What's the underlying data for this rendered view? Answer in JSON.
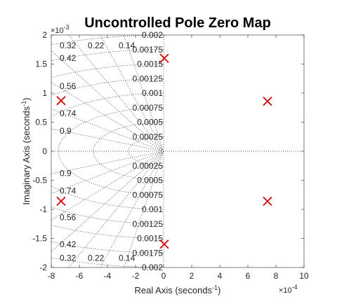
{
  "chart_data": {
    "type": "scatter",
    "title": "Uncontrolled Pole Zero Map",
    "xlabel": "Real Axis (seconds",
    "xlabel_sup": "-1",
    "ylabel": "Imaginary Axis (seconds",
    "ylabel_sup": "-1",
    "x_exponent_base": "×10",
    "x_exponent": "-4",
    "y_exponent_base": "×10",
    "y_exponent": "-3",
    "xlim": [
      -8,
      10
    ],
    "ylim": [
      -2,
      2
    ],
    "x_ticks": [
      -8,
      -6,
      -4,
      -2,
      0,
      2,
      4,
      6,
      8,
      10
    ],
    "x_tick_labels": [
      "-8",
      "-6",
      "-4",
      "-2",
      "0",
      "2",
      "4",
      "6",
      "8",
      "10"
    ],
    "y_ticks": [
      -2,
      -1.5,
      -1,
      -0.5,
      0,
      0.5,
      1,
      1.5,
      2
    ],
    "y_tick_labels": [
      "-2",
      "-1.5",
      "-1",
      "-0.5",
      "0",
      "0.5",
      "1",
      "1.5",
      "2"
    ],
    "grid": true,
    "damping_lines": [
      0.14,
      0.22,
      0.32,
      0.42,
      0.56,
      0.74,
      0.9
    ],
    "damping_labels": [
      "0.14",
      "0.22",
      "0.32",
      "0.42",
      "0.56",
      "0.74",
      "0.9"
    ],
    "frequency_circles": [
      0.00025,
      0.0005,
      0.00075,
      0.001,
      0.00125,
      0.0015,
      0.00175,
      0.002
    ],
    "frequency_labels": [
      "0.00025",
      "0.0005",
      "0.00075",
      "0.001",
      "0.00125",
      "0.0015",
      "0.00175",
      "0.002"
    ],
    "poles": [
      {
        "x": -7.3,
        "y": 0.87
      },
      {
        "x": -7.3,
        "y": -0.86
      },
      {
        "x": 0.05,
        "y": 1.6
      },
      {
        "x": 0.05,
        "y": -1.6
      },
      {
        "x": 7.4,
        "y": 0.86
      },
      {
        "x": 7.4,
        "y": -0.86
      }
    ],
    "pole_color": "#d40000",
    "grid_color": "#262626"
  }
}
